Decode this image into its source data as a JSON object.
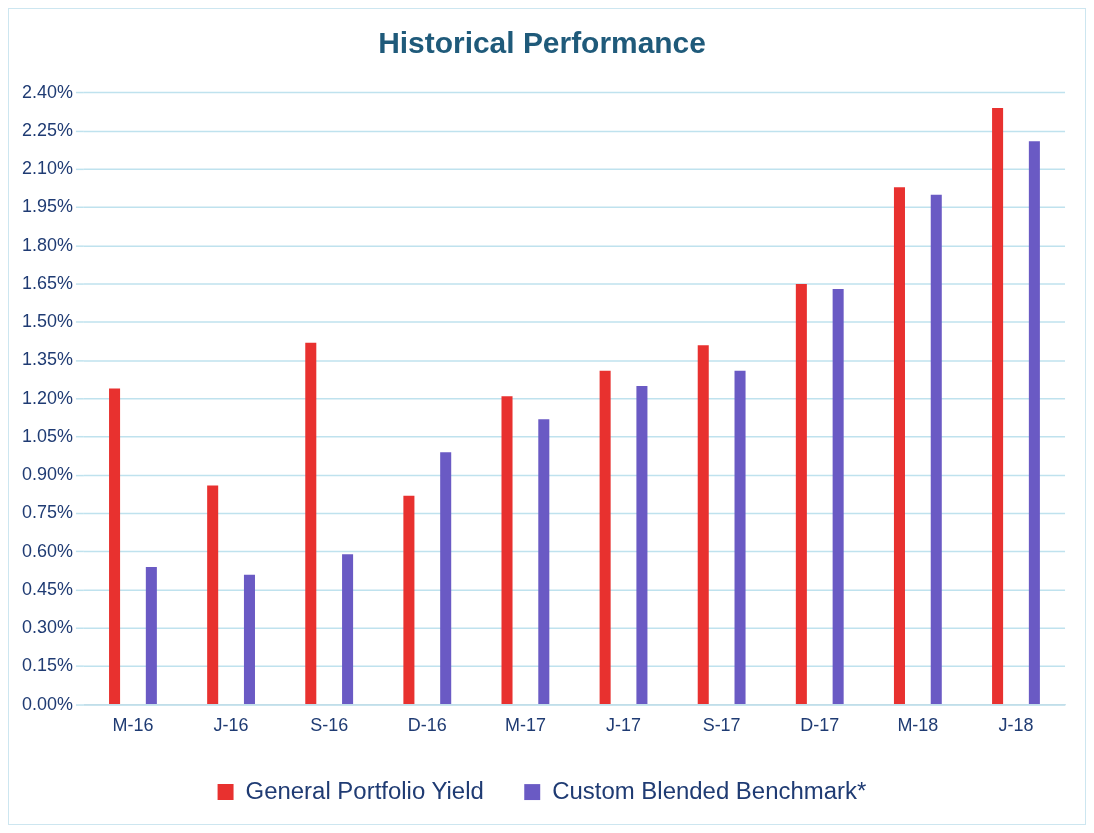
{
  "chart_data": {
    "type": "bar",
    "title": "Historical Performance",
    "categories": [
      "M-16",
      "J-16",
      "S-16",
      "D-16",
      "M-17",
      "J-17",
      "S-17",
      "D-17",
      "M-18",
      "J-18"
    ],
    "series": [
      {
        "name": "General Portfolio Yield",
        "color": "#e8312f",
        "values": [
          1.24,
          0.86,
          1.42,
          0.82,
          1.21,
          1.31,
          1.41,
          1.65,
          2.03,
          2.34
        ]
      },
      {
        "name": "Custom Blended Benchmark*",
        "color": "#6a5ac4",
        "values": [
          0.54,
          0.51,
          0.59,
          0.99,
          1.12,
          1.25,
          1.31,
          1.63,
          2.0,
          2.21
        ]
      }
    ],
    "ylim": [
      0,
      2.4
    ],
    "yticks": [
      {
        "value": 0,
        "label": "0.00%"
      },
      {
        "value": 0.15,
        "label": "0.15%"
      },
      {
        "value": 0.3,
        "label": "0.30%"
      },
      {
        "value": 0.45,
        "label": "0.45%"
      },
      {
        "value": 0.6,
        "label": "0.60%"
      },
      {
        "value": 0.75,
        "label": "0.75%"
      },
      {
        "value": 0.9,
        "label": "0.90%"
      },
      {
        "value": 1.05,
        "label": "1.05%"
      },
      {
        "value": 1.2,
        "label": "1.20%"
      },
      {
        "value": 1.35,
        "label": "1.35%"
      },
      {
        "value": 1.5,
        "label": "1.50%"
      },
      {
        "value": 1.65,
        "label": "1.65%"
      },
      {
        "value": 1.8,
        "label": "1.80%"
      },
      {
        "value": 1.95,
        "label": "1.95%"
      },
      {
        "value": 2.1,
        "label": "2.10%"
      },
      {
        "value": 2.25,
        "label": "2.25%"
      },
      {
        "value": 2.4,
        "label": "2.40%"
      }
    ],
    "grid": "y",
    "legend": "bottom"
  }
}
